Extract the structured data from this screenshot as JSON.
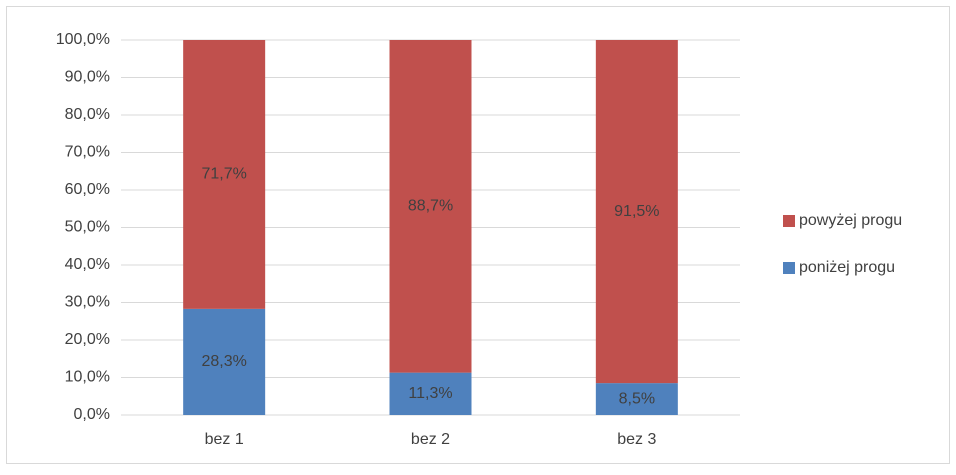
{
  "chart_data": {
    "type": "bar",
    "stacked": true,
    "categories": [
      "bez 1",
      "bez 2",
      "bez 3"
    ],
    "series": [
      {
        "name": "poniżej progu",
        "color": "#4f81bd",
        "values": [
          28.3,
          11.3,
          8.5
        ],
        "value_labels": [
          "28,3%",
          "11,3%",
          "8,5%"
        ]
      },
      {
        "name": "powyżej progu",
        "color": "#c0504d",
        "values": [
          71.7,
          88.7,
          91.5
        ],
        "value_labels": [
          "71,7%",
          "88,7%",
          "91,5%"
        ]
      }
    ],
    "ylim": [
      0,
      100
    ],
    "yticks": [
      {
        "value": 0,
        "label": "0,0%"
      },
      {
        "value": 10,
        "label": "10,0%"
      },
      {
        "value": 20,
        "label": "20,0%"
      },
      {
        "value": 30,
        "label": "30,0%"
      },
      {
        "value": 40,
        "label": "40,0%"
      },
      {
        "value": 50,
        "label": "50,0%"
      },
      {
        "value": 60,
        "label": "60,0%"
      },
      {
        "value": 70,
        "label": "70,0%"
      },
      {
        "value": 80,
        "label": "80,0%"
      },
      {
        "value": 90,
        "label": "90,0%"
      },
      {
        "value": 100,
        "label": "100,0%"
      }
    ],
    "grid": true,
    "legend": "right"
  }
}
